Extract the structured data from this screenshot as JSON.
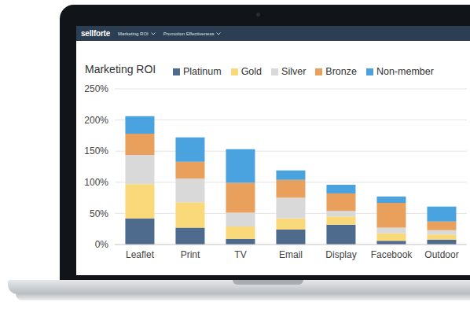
{
  "header": {
    "brand": "sellforte",
    "menu": [
      "Marketing ROI",
      "Promotion Effectiveness"
    ]
  },
  "chart_data": {
    "type": "bar",
    "title": "Marketing ROI",
    "categories": [
      "Leaflet",
      "Print",
      "TV",
      "Email",
      "Display",
      "Facebook",
      "Outdoor"
    ],
    "series": [
      {
        "name": "Platinum",
        "color": "#4e6a8d",
        "values": [
          42,
          27,
          9,
          24,
          32,
          6,
          8
        ]
      },
      {
        "name": "Gold",
        "color": "#f9d97a",
        "values": [
          55,
          41,
          20,
          18,
          13,
          12,
          8
        ]
      },
      {
        "name": "Silver",
        "color": "#d9d9d9",
        "values": [
          47,
          38,
          22,
          33,
          9,
          9,
          7
        ]
      },
      {
        "name": "Bronze",
        "color": "#e8a05c",
        "values": [
          34,
          27,
          48,
          29,
          28,
          40,
          14
        ]
      },
      {
        "name": "Non-member",
        "color": "#4aa3df",
        "values": [
          28,
          39,
          54,
          15,
          14,
          10,
          24
        ]
      }
    ],
    "ylim": [
      0,
      250
    ],
    "yticks": [
      {
        "value": 0,
        "label": "0%"
      },
      {
        "value": 50,
        "label": "50%"
      },
      {
        "value": 100,
        "label": "100%"
      },
      {
        "value": 150,
        "label": "150%"
      },
      {
        "value": 200,
        "label": "200%"
      },
      {
        "value": 250,
        "label": "250%"
      }
    ],
    "grid": true,
    "stacked": true,
    "legend": "top"
  }
}
